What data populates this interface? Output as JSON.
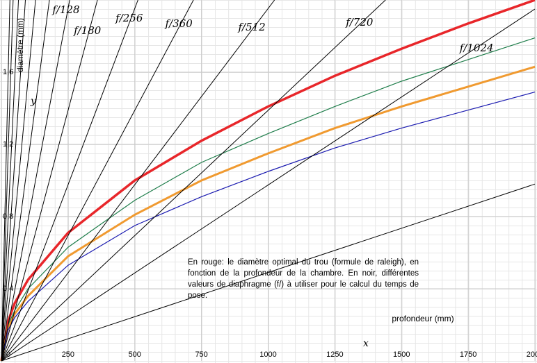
{
  "chart_data": {
    "type": "line",
    "ylabel": "diamètre (mm)",
    "xlabel": "profondeur (mm)",
    "x_axis_name": "x",
    "y_axis_name": "y",
    "annotation": "En rouge: le diamètre optimal du trou (formule de raleigh), en fonction de la profondeur de la chambre. En noir, différentes valeurs de diaphragme (f/) à utiliser pour le calcul du temps de pose.",
    "xlim": [
      0,
      2000
    ],
    "ylim": [
      0,
      2
    ],
    "xticks": [
      0,
      250,
      500,
      750,
      1000,
      1250,
      1500,
      1750,
      2000
    ],
    "yticks": [
      {
        "value": 0.4,
        "label": "0,4"
      },
      {
        "value": 0.8,
        "label": "0,8"
      },
      {
        "value": 1.2,
        "label": "1,2"
      },
      {
        "value": 1.6,
        "label": "1,6"
      }
    ],
    "grid": true,
    "series": [
      {
        "color": "#e8262a",
        "width": 3.5,
        "x": [
          0,
          25,
          50,
          100,
          250,
          500,
          750,
          1000,
          1250,
          1500,
          1750,
          2000
        ],
        "values": [
          0,
          0.22,
          0.32,
          0.45,
          0.71,
          1.0,
          1.22,
          1.41,
          1.58,
          1.73,
          1.87,
          2.0
        ]
      },
      {
        "color": "#1e7d4a",
        "width": 1.2,
        "x": [
          0,
          25,
          50,
          100,
          250,
          500,
          750,
          1000,
          1250,
          1500,
          1750,
          2000
        ],
        "values": [
          0,
          0.2,
          0.28,
          0.4,
          0.63,
          0.89,
          1.1,
          1.26,
          1.41,
          1.55,
          1.67,
          1.79
        ]
      },
      {
        "color": "#f09a30",
        "width": 3,
        "x": [
          0,
          25,
          50,
          100,
          250,
          500,
          750,
          1000,
          1250,
          1500,
          1750,
          2000
        ],
        "values": [
          0,
          0.18,
          0.26,
          0.36,
          0.58,
          0.81,
          1.0,
          1.15,
          1.29,
          1.41,
          1.52,
          1.63
        ]
      },
      {
        "color": "#1a1ab0",
        "width": 1.2,
        "x": [
          0,
          25,
          50,
          100,
          250,
          500,
          750,
          1000,
          1250,
          1500,
          1750,
          2000
        ],
        "values": [
          0,
          0.17,
          0.24,
          0.33,
          0.53,
          0.75,
          0.91,
          1.05,
          1.18,
          1.29,
          1.39,
          1.49
        ]
      },
      {
        "color": "#000000",
        "width": 1,
        "x": [
          0,
          32
        ],
        "values": [
          0,
          2
        ]
      },
      {
        "color": "#000000",
        "width": 1,
        "x": [
          0,
          44
        ],
        "values": [
          0,
          2
        ]
      },
      {
        "color": "#000000",
        "width": 1,
        "x": [
          0,
          64
        ],
        "values": [
          0,
          2
        ]
      },
      {
        "color": "#000000",
        "width": 1,
        "x": [
          0,
          90
        ],
        "values": [
          0,
          2
        ]
      },
      {
        "color": "#000000",
        "width": 1,
        "x": [
          0,
          128
        ],
        "values": [
          0,
          2
        ]
      },
      {
        "color": "#000000",
        "width": 1,
        "x": [
          0,
          180
        ],
        "values": [
          0,
          2
        ]
      },
      {
        "name": "f/128",
        "color": "#000000",
        "width": 1,
        "x": [
          0,
          256
        ],
        "values": [
          0,
          2
        ]
      },
      {
        "name": "f/180",
        "color": "#000000",
        "width": 1,
        "x": [
          0,
          360
        ],
        "values": [
          0,
          2
        ]
      },
      {
        "name": "f/256",
        "color": "#000000",
        "width": 1,
        "x": [
          0,
          512
        ],
        "values": [
          0,
          2
        ]
      },
      {
        "name": "f/360",
        "color": "#000000",
        "width": 1,
        "x": [
          0,
          720
        ],
        "values": [
          0,
          2
        ]
      },
      {
        "name": "f/512",
        "color": "#000000",
        "width": 1,
        "x": [
          0,
          1024
        ],
        "values": [
          0,
          2
        ]
      },
      {
        "name": "f/720",
        "color": "#000000",
        "width": 1,
        "x": [
          0,
          1440
        ],
        "values": [
          0,
          2
        ]
      },
      {
        "name": "f/1024",
        "color": "#000000",
        "width": 1,
        "x": [
          0,
          2000
        ],
        "values": [
          0,
          1.95
        ]
      },
      {
        "color": "#000000",
        "width": 1,
        "x": [
          0,
          2000
        ],
        "values": [
          0,
          0.98
        ]
      }
    ]
  }
}
